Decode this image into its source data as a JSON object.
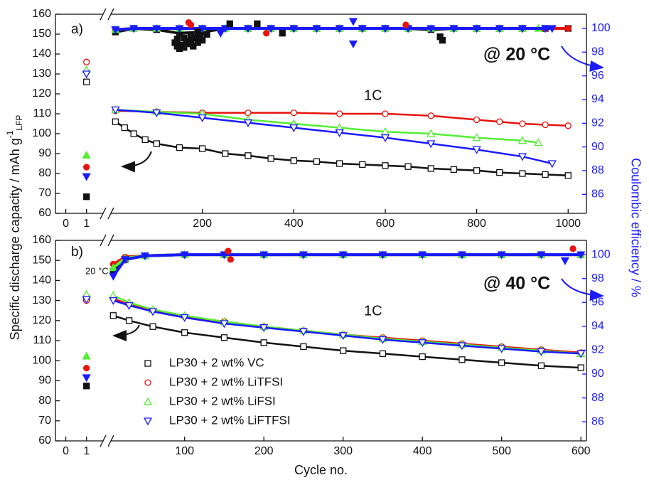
{
  "chart_data": [
    {
      "type": "scatter",
      "panel_label": "a)",
      "temperature_label": "@ 20 °C",
      "rate_label": "1C",
      "ylabel": "Specific discharge capacity / mAh g",
      "ylabel_sup": "-1",
      "ylabel_sub": "LFP",
      "y2label": "Coulombic efficiency / %",
      "xlim": [
        [
          -0.5,
          1.8
        ],
        [
          0,
          1040
        ]
      ],
      "xticks": [
        0,
        1,
        200,
        400,
        600,
        800,
        1000
      ],
      "ylim": [
        60,
        160
      ],
      "yticks": [
        60,
        70,
        80,
        90,
        100,
        110,
        120,
        130,
        140,
        150,
        160
      ],
      "y2lim": [
        84.4,
        101.2
      ],
      "y2ticks": [
        86,
        88,
        90,
        92,
        94,
        96,
        98,
        100
      ],
      "series": [
        {
          "color": "#111111",
          "marker": "square",
          "fill": "open",
          "axis": "y",
          "line": true,
          "x": [
            1,
            10,
            30,
            50,
            75,
            100,
            150,
            200,
            250,
            300,
            350,
            400,
            450,
            500,
            550,
            600,
            650,
            700,
            750,
            800,
            850,
            900,
            950,
            1000
          ],
          "values": [
            126,
            106,
            103,
            100,
            97,
            95,
            93,
            92.5,
            90,
            89,
            87.5,
            86.5,
            86,
            85,
            84.5,
            84,
            83.5,
            82.5,
            82,
            81.5,
            80.5,
            80,
            79.5,
            79
          ]
        },
        {
          "color": "#e8120c",
          "marker": "circle",
          "fill": "open",
          "axis": "y",
          "line": true,
          "x": [
            1,
            10,
            100,
            200,
            300,
            400,
            500,
            600,
            700,
            800,
            850,
            900,
            950,
            1000
          ],
          "values": [
            136,
            111.5,
            111,
            110.5,
            110.5,
            110.5,
            110,
            110,
            109,
            107,
            106,
            105,
            104.5,
            104
          ]
        },
        {
          "color": "#55ee33",
          "marker": "triangle-up",
          "fill": "open",
          "axis": "y",
          "line": true,
          "x": [
            1,
            10,
            100,
            200,
            300,
            400,
            500,
            600,
            700,
            800,
            900,
            935
          ],
          "values": [
            132,
            112,
            111,
            110,
            107,
            105,
            103,
            101,
            100,
            98,
            96.5,
            95.5
          ]
        },
        {
          "color": "#1a1aff",
          "marker": "triangle-down",
          "fill": "open",
          "axis": "y",
          "line": true,
          "x": [
            1,
            10,
            100,
            200,
            300,
            400,
            500,
            600,
            700,
            800,
            900,
            965
          ],
          "values": [
            130,
            112,
            110.5,
            108,
            105.5,
            103,
            100.5,
            98,
            95,
            92,
            88.5,
            85
          ]
        },
        {
          "color": "#111111",
          "marker": "square",
          "fill": "filled",
          "axis": "y2",
          "line": true,
          "x": [
            1,
            10,
            50,
            100,
            150,
            200,
            250,
            300,
            350,
            400,
            450,
            500,
            550,
            600,
            650,
            700,
            750,
            800,
            850,
            900,
            950,
            1000
          ],
          "values": [
            85.8,
            99.7,
            100,
            99.9,
            99.6,
            99.7,
            100,
            100,
            100,
            100,
            100,
            100,
            100,
            100,
            100,
            99.9,
            100,
            100,
            100,
            100,
            100,
            100
          ]
        },
        {
          "color": "#e8120c",
          "marker": "circle",
          "fill": "filled",
          "axis": "y2",
          "line": true,
          "x": [
            1,
            10,
            50,
            100,
            150,
            200,
            250,
            300,
            350,
            400,
            450,
            500,
            550,
            600,
            650,
            700,
            750,
            800,
            850,
            900,
            950,
            1000
          ],
          "values": [
            88.3,
            99.9,
            100,
            100,
            100,
            100,
            100,
            100,
            100,
            100,
            100,
            100,
            100,
            100,
            100,
            100,
            100,
            100,
            100,
            100,
            100,
            100
          ]
        },
        {
          "color": "#55ee33",
          "marker": "triangle-up",
          "fill": "filled",
          "axis": "y2",
          "line": true,
          "x": [
            1,
            10,
            50,
            100,
            150,
            200,
            250,
            300,
            350,
            400,
            450,
            500,
            550,
            600,
            650,
            700,
            750,
            800,
            850,
            900,
            935
          ],
          "values": [
            89.3,
            99.9,
            100,
            100,
            100,
            100,
            100,
            100,
            100,
            100,
            100,
            100,
            100,
            100,
            100,
            100,
            100,
            100,
            100,
            100,
            100
          ]
        },
        {
          "color": "#1a1aff",
          "marker": "triangle-down",
          "fill": "filled",
          "axis": "y2",
          "line": true,
          "x": [
            1,
            10,
            50,
            100,
            150,
            200,
            250,
            300,
            350,
            400,
            450,
            500,
            550,
            600,
            650,
            700,
            750,
            800,
            850,
            900,
            950,
            965
          ],
          "values": [
            87.5,
            99.9,
            100,
            100,
            100,
            100,
            100,
            100,
            100,
            100,
            100,
            100,
            100,
            100,
            100,
            100,
            100,
            100,
            100,
            100,
            100,
            100
          ]
        },
        {
          "color": "#111111",
          "marker": "square",
          "fill": "filled",
          "axis": "y2",
          "line": false,
          "x": [
            140,
            145,
            150,
            155,
            160,
            165,
            170,
            175,
            180,
            185,
            190,
            195,
            200,
            210,
            145,
            160,
            175,
            190,
            260,
            320,
            375,
            720,
            725
          ],
          "values": [
            98.8,
            98.5,
            98.3,
            98.6,
            98.4,
            98.9,
            98.7,
            99.0,
            98.5,
            99.2,
            98.8,
            99.3,
            99.0,
            99.5,
            99.1,
            99.2,
            99.4,
            99.7,
            100.4,
            100.4,
            99.6,
            99.3,
            99.0
          ]
        },
        {
          "color": "#e8120c",
          "marker": "circle",
          "fill": "filled",
          "axis": "y2",
          "line": false,
          "x": [
            170,
            175,
            340,
            645
          ],
          "values": [
            100.5,
            100.3,
            99.6,
            100.3
          ]
        },
        {
          "color": "#1a1aff",
          "marker": "triangle-down",
          "fill": "filled",
          "axis": "y2",
          "line": false,
          "x": [
            530,
            530,
            240
          ],
          "values": [
            100.6,
            98.7,
            99.6
          ]
        }
      ]
    },
    {
      "type": "scatter",
      "panel_label": "b)",
      "temperature_label": "@ 40 °C",
      "rate_label": "1C",
      "formation_label": "20 °C",
      "xlabel": "Cycle no.",
      "legend": "lower left",
      "xlim": [
        [
          -0.5,
          1.8
        ],
        [
          7,
          607
        ]
      ],
      "xticks": [
        0,
        1,
        100,
        200,
        300,
        400,
        500,
        600
      ],
      "ylim": [
        60,
        160
      ],
      "yticks": [
        60,
        70,
        80,
        90,
        100,
        110,
        120,
        130,
        140,
        150,
        160
      ],
      "y2lim": [
        84.4,
        101.2
      ],
      "y2ticks": [
        86,
        88,
        90,
        92,
        94,
        96,
        98,
        100
      ],
      "series": [
        {
          "name": "LP30 + 2 wt% VC",
          "color": "#111111",
          "marker": "square",
          "fill": "open",
          "axis": "y",
          "line": true,
          "x": [
            1,
            10,
            30,
            60,
            100,
            150,
            200,
            250,
            300,
            350,
            400,
            450,
            500,
            550,
            600
          ],
          "values": [
            131,
            122.5,
            120,
            117,
            114,
            111.5,
            109,
            107,
            105,
            103.5,
            102,
            100.5,
            99,
            97.5,
            96.5
          ]
        },
        {
          "name": "LP30 + 2 wt% LiTFSI",
          "color": "#e8120c",
          "marker": "circle",
          "fill": "open",
          "axis": "y",
          "line": true,
          "x": [
            1,
            10,
            30,
            60,
            100,
            150,
            200,
            250,
            300,
            350,
            400,
            450,
            500,
            550,
            600
          ],
          "values": [
            130,
            131,
            128,
            125,
            122,
            119.5,
            117,
            115,
            113,
            111.5,
            110,
            108.5,
            107,
            105.5,
            104
          ]
        },
        {
          "name": "LP30 + 2 wt% LiFSI",
          "color": "#55ee33",
          "marker": "triangle-up",
          "fill": "open",
          "axis": "y",
          "line": true,
          "x": [
            1,
            10,
            30,
            60,
            100,
            150,
            200,
            250,
            300,
            350,
            400,
            450,
            500,
            550,
            600
          ],
          "values": [
            133,
            132.5,
            129,
            125.5,
            122.5,
            119.5,
            117,
            115,
            113,
            111,
            109.5,
            108,
            106.5,
            105,
            103.5
          ]
        },
        {
          "name": "LP30 + 2 wt% LiFTFSI",
          "color": "#1a1aff",
          "marker": "triangle-down",
          "fill": "open",
          "axis": "y",
          "line": true,
          "x": [
            1,
            10,
            30,
            60,
            100,
            150,
            200,
            250,
            300,
            350,
            400,
            450,
            500,
            550,
            600
          ],
          "values": [
            130.5,
            130,
            127.5,
            124.5,
            121.5,
            118.5,
            116.5,
            114.5,
            112.5,
            110.5,
            109,
            107.5,
            106,
            104.5,
            103.5
          ]
        },
        {
          "color": "#111111",
          "marker": "square",
          "fill": "filled",
          "axis": "y2",
          "line": true,
          "x": [
            1,
            10,
            25,
            50,
            100,
            150,
            200,
            250,
            300,
            350,
            400,
            450,
            500,
            550,
            600
          ],
          "values": [
            89.0,
            98.6,
            99.6,
            99.9,
            100,
            100,
            100,
            100,
            100,
            100,
            100,
            100,
            100,
            100,
            100
          ]
        },
        {
          "color": "#e8120c",
          "marker": "circle",
          "fill": "filled",
          "axis": "y2",
          "line": true,
          "x": [
            1,
            10,
            25,
            50,
            100,
            150,
            200,
            250,
            300,
            350,
            400,
            450,
            500,
            550,
            600
          ],
          "values": [
            90.5,
            99.2,
            99.8,
            99.9,
            100,
            100,
            100,
            100,
            100,
            100,
            100,
            100,
            100,
            100,
            100
          ]
        },
        {
          "color": "#55ee33",
          "marker": "triangle-up",
          "fill": "filled",
          "axis": "y2",
          "line": true,
          "x": [
            1,
            10,
            25,
            50,
            100,
            150,
            200,
            250,
            300,
            350,
            400,
            450,
            500,
            550,
            600
          ],
          "values": [
            91.5,
            98.9,
            99.7,
            99.9,
            100,
            100,
            100,
            100,
            100,
            100,
            100,
            100,
            100,
            100,
            100
          ]
        },
        {
          "color": "#1a1aff",
          "marker": "triangle-down",
          "fill": "filled",
          "axis": "y2",
          "line": true,
          "x": [
            1,
            10,
            25,
            50,
            100,
            150,
            200,
            250,
            300,
            350,
            400,
            450,
            500,
            550,
            600
          ],
          "values": [
            89.7,
            98.2,
            99.6,
            99.9,
            100,
            100,
            100,
            100,
            100,
            100,
            100,
            100,
            100,
            100,
            100
          ]
        },
        {
          "color": "#e8120c",
          "marker": "circle",
          "fill": "filled",
          "axis": "y2",
          "line": false,
          "x": [
            155,
            158,
            590
          ],
          "values": [
            100.3,
            99.6,
            100.5
          ]
        },
        {
          "color": "#1a1aff",
          "marker": "triangle-down",
          "fill": "filled",
          "axis": "y2",
          "line": false,
          "x": [
            580
          ],
          "values": [
            99.5
          ]
        }
      ]
    }
  ]
}
